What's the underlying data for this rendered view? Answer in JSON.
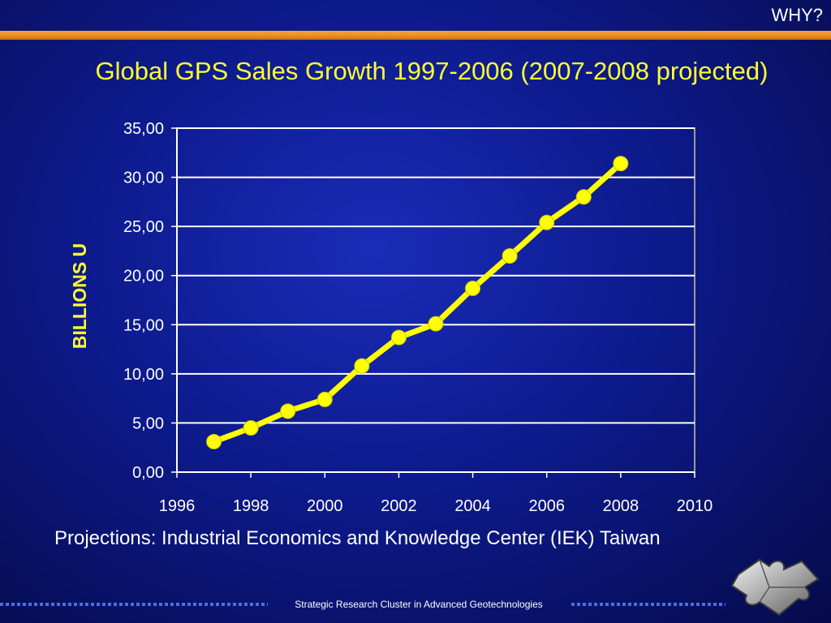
{
  "header": {
    "tag": "WHY?"
  },
  "slide": {
    "title": "Global GPS Sales Growth 1997-2006 (2007-2008 projected)",
    "source_note": "Projections: Industrial Economics and Knowledge Center (IEK) Taiwan",
    "footer": "Strategic Research Cluster in Advanced Geotechnologies"
  },
  "colors": {
    "background": "#0d1a8c",
    "accent_bar": "#ee8a1c",
    "title": "#ffff33",
    "series_line": "#ffff00",
    "gridline": "#ffffff"
  },
  "chart_data": {
    "type": "line",
    "title": "Global GPS Sales Growth 1997-2006 (2007-2008 projected)",
    "ylabel": "BILLIONS U",
    "xlabel": "",
    "xlim": [
      1996,
      2010
    ],
    "ylim": [
      0,
      35
    ],
    "x_ticks": [
      "1996",
      "1998",
      "2000",
      "2002",
      "2004",
      "2006",
      "2008",
      "2010"
    ],
    "y_ticks": [
      "0,00",
      "5,00",
      "10,00",
      "15,00",
      "20,00",
      "25,00",
      "30,00",
      "35,00"
    ],
    "grid": true,
    "legend": "none",
    "series": [
      {
        "x": [
          1997,
          1998,
          1999,
          2000,
          2001,
          2002,
          2003,
          2004,
          2005,
          2006,
          2007,
          2008
        ],
        "y": [
          3.1,
          4.5,
          6.2,
          7.4,
          10.8,
          13.7,
          15.1,
          18.7,
          22.0,
          25.4,
          28.0,
          31.4
        ]
      }
    ]
  }
}
